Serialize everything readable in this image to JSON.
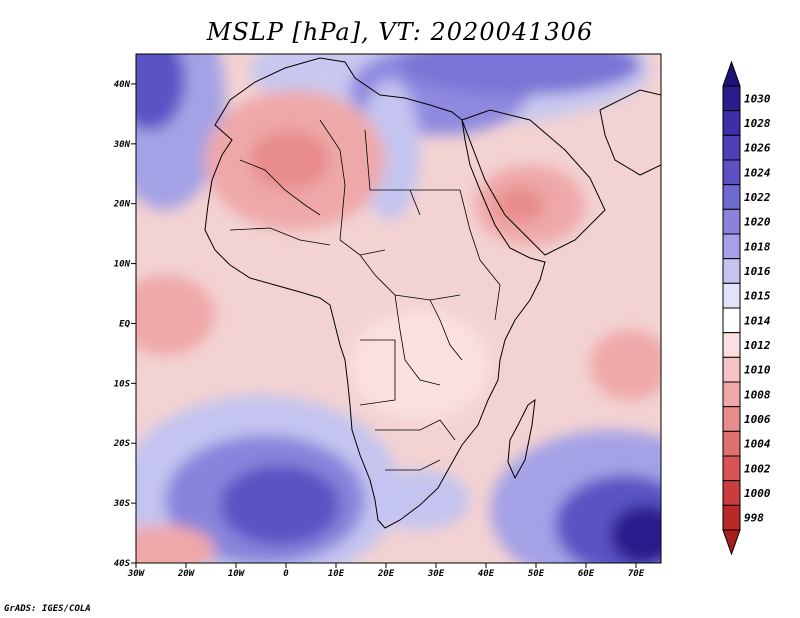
{
  "title": "MSLP [hPa], VT: 2020041306",
  "credit": "GrADS: IGES/COLA",
  "map": {
    "lon_range": [
      -30,
      75
    ],
    "lat_range": [
      -40,
      45
    ],
    "lat_ticks": [
      {
        "lat": 40,
        "label": "40N"
      },
      {
        "lat": 30,
        "label": "30N"
      },
      {
        "lat": 20,
        "label": "20N"
      },
      {
        "lat": 10,
        "label": "10N"
      },
      {
        "lat": 0,
        "label": "EQ"
      },
      {
        "lat": -10,
        "label": "10S"
      },
      {
        "lat": -20,
        "label": "20S"
      },
      {
        "lat": -30,
        "label": "30S"
      },
      {
        "lat": -40,
        "label": "40S"
      }
    ],
    "lon_ticks": [
      {
        "lon": -30,
        "label": "30W"
      },
      {
        "lon": -20,
        "label": "20W"
      },
      {
        "lon": -10,
        "label": "10W"
      },
      {
        "lon": 0,
        "label": "0"
      },
      {
        "lon": 10,
        "label": "10E"
      },
      {
        "lon": 20,
        "label": "20E"
      },
      {
        "lon": 30,
        "label": "30E"
      },
      {
        "lon": 40,
        "label": "40E"
      },
      {
        "lon": 50,
        "label": "50E"
      },
      {
        "lon": 60,
        "label": "60E"
      },
      {
        "lon": 70,
        "label": "70E"
      }
    ]
  },
  "colorbar": {
    "levels": [
      {
        "label": "1030",
        "color": "#2a1e8c"
      },
      {
        "label": "1028",
        "color": "#3c2fa8"
      },
      {
        "label": "1026",
        "color": "#4a40b8"
      },
      {
        "label": "1024",
        "color": "#5a52c4"
      },
      {
        "label": "1022",
        "color": "#6f6ad0"
      },
      {
        "label": "1020",
        "color": "#8884dc"
      },
      {
        "label": "1018",
        "color": "#a4a2e6"
      },
      {
        "label": "1016",
        "color": "#c4c4f0"
      },
      {
        "label": "1015",
        "color": "#e2e2f8"
      },
      {
        "label": "1014",
        "color": "#ffffff"
      },
      {
        "label": "1012",
        "color": "#fbe0e0"
      },
      {
        "label": "1010",
        "color": "#f6c4c4"
      },
      {
        "label": "1008",
        "color": "#efa8a8"
      },
      {
        "label": "1006",
        "color": "#e88c8c"
      },
      {
        "label": "1004",
        "color": "#e07070"
      },
      {
        "label": "1002",
        "color": "#d85454"
      },
      {
        "label": "1000",
        "color": "#cc3c3c"
      },
      {
        "label": "998",
        "color": "#bb2828"
      }
    ],
    "top_arrow_color": "#1e1478",
    "bottom_arrow_color": "#a81e1e"
  }
}
